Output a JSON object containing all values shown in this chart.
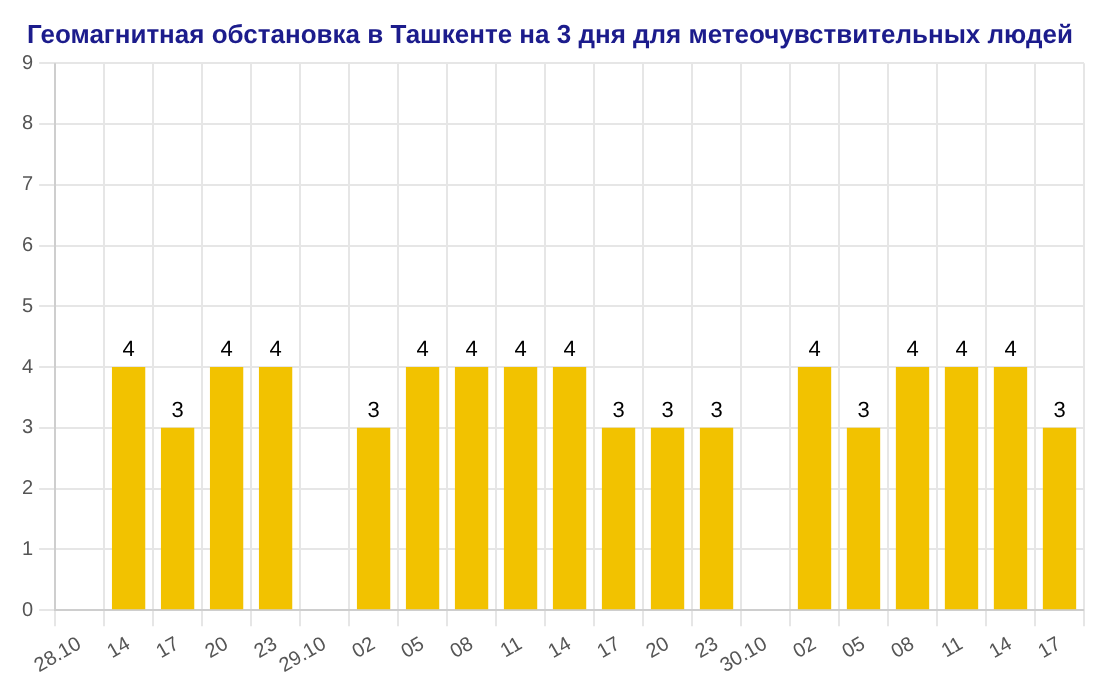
{
  "chart_data": {
    "type": "bar",
    "title": "Геомагнитная обстановка в Ташкенте на 3 дня для метеочувствительных людей",
    "categories": [
      "28.10",
      "14",
      "17",
      "20",
      "23",
      "29.10",
      "02",
      "05",
      "08",
      "11",
      "14",
      "17",
      "20",
      "23",
      "30.10",
      "02",
      "05",
      "08",
      "11",
      "14",
      "17"
    ],
    "values": [
      null,
      4,
      3,
      4,
      4,
      null,
      3,
      4,
      4,
      4,
      4,
      3,
      3,
      3,
      null,
      4,
      3,
      4,
      4,
      4,
      3
    ],
    "color": "#f2c200",
    "ylim": [
      0,
      9
    ],
    "yticks": [
      0,
      1,
      2,
      3,
      4,
      5,
      6,
      7,
      8,
      9
    ],
    "grid": true,
    "data_labels": true
  }
}
